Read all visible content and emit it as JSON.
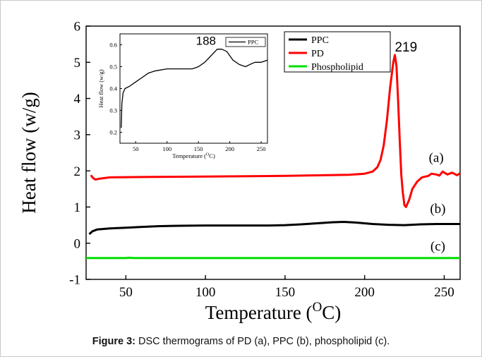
{
  "caption": {
    "label": "Figure 3:",
    "text": " DSC thermograms of PD (a), PPC (b), phospholipid (c)."
  },
  "chart_data": [
    {
      "type": "line",
      "xlabel_main": "Temperature (",
      "xlabel_sup": "O",
      "xlabel_end": "C)",
      "ylabel": "Heat flow (w/g)",
      "xlim": [
        25,
        260
      ],
      "ylim": [
        -1,
        6
      ],
      "xticks": [
        50,
        100,
        150,
        200,
        250
      ],
      "yticks": [
        -1,
        0,
        1,
        2,
        3,
        4,
        5,
        6
      ],
      "legend": "top-right",
      "series": [
        {
          "name": "PPC",
          "color": "#000000",
          "tag": "(b)",
          "x": [
            27,
            29,
            32,
            40,
            50,
            60,
            70,
            80,
            100,
            120,
            140,
            150,
            160,
            170,
            180,
            187,
            195,
            205,
            215,
            225,
            235,
            245,
            260
          ],
          "y": [
            0.25,
            0.33,
            0.38,
            0.41,
            0.43,
            0.45,
            0.47,
            0.48,
            0.49,
            0.49,
            0.49,
            0.5,
            0.52,
            0.55,
            0.58,
            0.59,
            0.57,
            0.53,
            0.51,
            0.5,
            0.52,
            0.53,
            0.53
          ]
        },
        {
          "name": "PD",
          "color": "#ff0000",
          "tag": "(a)",
          "x": [
            28,
            29,
            30,
            31,
            33,
            40,
            60,
            100,
            150,
            190,
            200,
            205,
            208,
            210,
            212,
            214,
            216,
            218,
            219,
            220,
            221,
            222,
            223,
            224,
            225,
            226,
            228,
            230,
            233,
            236,
            240,
            242,
            245,
            247,
            249,
            252,
            255,
            258,
            260
          ],
          "y": [
            1.88,
            1.82,
            1.78,
            1.76,
            1.78,
            1.82,
            1.83,
            1.84,
            1.86,
            1.89,
            1.92,
            1.98,
            2.1,
            2.3,
            2.7,
            3.4,
            4.3,
            5.0,
            5.2,
            4.9,
            4.0,
            2.9,
            1.9,
            1.4,
            1.05,
            1.0,
            1.2,
            1.5,
            1.7,
            1.82,
            1.86,
            1.92,
            1.9,
            1.87,
            1.98,
            1.9,
            1.95,
            1.88,
            1.93
          ]
        },
        {
          "name": "Phospholipid",
          "color": "#00e000",
          "tag": "(c)",
          "x": [
            25,
            50,
            52,
            55,
            100,
            150,
            200,
            260
          ],
          "y": [
            -0.41,
            -0.41,
            -0.4,
            -0.41,
            -0.41,
            -0.41,
            -0.41,
            -0.41
          ]
        }
      ],
      "annotations": [
        {
          "text": "219",
          "x": 226,
          "y": 5.3
        }
      ]
    },
    {
      "type": "line",
      "xlabel_main": "Temperature (",
      "xlabel_sup": "O",
      "xlabel_end": "C)",
      "ylabel": "Heat flow (w/g)",
      "xlim": [
        25,
        260
      ],
      "ylim": [
        0.15,
        0.65
      ],
      "xticks": [
        50,
        100,
        150,
        200,
        250
      ],
      "yticks": [
        0.2,
        0.3,
        0.4,
        0.5,
        0.6
      ],
      "legend": "top-right",
      "series": [
        {
          "name": "PPC",
          "color": "#000000",
          "x": [
            27,
            28,
            30,
            33,
            40,
            50,
            60,
            70,
            80,
            100,
            120,
            140,
            150,
            160,
            170,
            180,
            187,
            195,
            205,
            215,
            225,
            232,
            240,
            250,
            260
          ],
          "y": [
            0.22,
            0.33,
            0.38,
            0.4,
            0.41,
            0.43,
            0.45,
            0.47,
            0.48,
            0.49,
            0.49,
            0.49,
            0.5,
            0.52,
            0.55,
            0.58,
            0.58,
            0.57,
            0.53,
            0.51,
            0.5,
            0.51,
            0.52,
            0.52,
            0.53
          ]
        }
      ],
      "annotations": [
        {
          "text": "188",
          "x": 162,
          "y": 0.6
        }
      ]
    }
  ]
}
